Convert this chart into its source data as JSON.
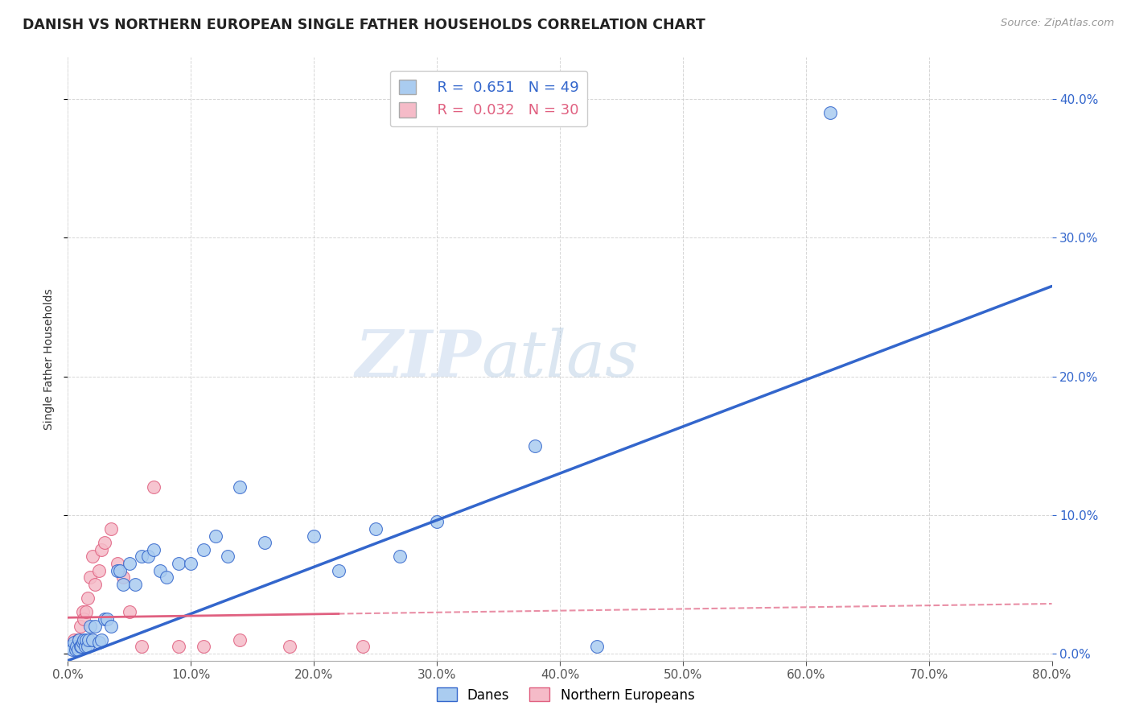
{
  "title": "DANISH VS NORTHERN EUROPEAN SINGLE FATHER HOUSEHOLDS CORRELATION CHART",
  "source": "Source: ZipAtlas.com",
  "ylabel": "Single Father Households",
  "xlim": [
    0.0,
    0.8
  ],
  "ylim": [
    -0.005,
    0.43
  ],
  "danes_R": 0.651,
  "danes_N": 49,
  "northern_R": 0.032,
  "northern_N": 30,
  "danes_color": "#aaccf0",
  "northern_color": "#f5bbc8",
  "danes_line_color": "#3366cc",
  "northern_line_color": "#e06080",
  "background_color": "#ffffff",
  "grid_color": "#cccccc",
  "danes_line_x0": 0.0,
  "danes_line_y0": -0.005,
  "danes_line_x1": 0.8,
  "danes_line_y1": 0.265,
  "northern_line_x0": 0.0,
  "northern_line_y0": 0.026,
  "northern_line_x1": 0.8,
  "northern_line_y1": 0.036,
  "danes_scatter_x": [
    0.002,
    0.003,
    0.004,
    0.005,
    0.006,
    0.007,
    0.008,
    0.009,
    0.01,
    0.011,
    0.012,
    0.013,
    0.014,
    0.015,
    0.016,
    0.017,
    0.018,
    0.02,
    0.022,
    0.025,
    0.027,
    0.03,
    0.032,
    0.035,
    0.04,
    0.042,
    0.045,
    0.05,
    0.055,
    0.06,
    0.065,
    0.07,
    0.075,
    0.08,
    0.09,
    0.1,
    0.11,
    0.12,
    0.13,
    0.14,
    0.16,
    0.2,
    0.22,
    0.25,
    0.27,
    0.3,
    0.38,
    0.43,
    0.62
  ],
  "danes_scatter_y": [
    0.005,
    0.005,
    0.003,
    0.008,
    0.003,
    0.005,
    0.003,
    0.01,
    0.005,
    0.005,
    0.008,
    0.01,
    0.005,
    0.01,
    0.005,
    0.01,
    0.02,
    0.01,
    0.02,
    0.008,
    0.01,
    0.025,
    0.025,
    0.02,
    0.06,
    0.06,
    0.05,
    0.065,
    0.05,
    0.07,
    0.07,
    0.075,
    0.06,
    0.055,
    0.065,
    0.065,
    0.075,
    0.085,
    0.07,
    0.12,
    0.08,
    0.085,
    0.06,
    0.09,
    0.07,
    0.095,
    0.15,
    0.005,
    0.39
  ],
  "northern_scatter_x": [
    0.002,
    0.003,
    0.004,
    0.005,
    0.006,
    0.007,
    0.008,
    0.009,
    0.01,
    0.012,
    0.013,
    0.015,
    0.016,
    0.018,
    0.02,
    0.022,
    0.025,
    0.027,
    0.03,
    0.035,
    0.04,
    0.045,
    0.05,
    0.06,
    0.07,
    0.09,
    0.11,
    0.14,
    0.18,
    0.24
  ],
  "northern_scatter_y": [
    0.005,
    0.005,
    0.005,
    0.01,
    0.005,
    0.005,
    0.01,
    0.01,
    0.02,
    0.03,
    0.025,
    0.03,
    0.04,
    0.055,
    0.07,
    0.05,
    0.06,
    0.075,
    0.08,
    0.09,
    0.065,
    0.055,
    0.03,
    0.005,
    0.12,
    0.005,
    0.005,
    0.01,
    0.005,
    0.005
  ]
}
